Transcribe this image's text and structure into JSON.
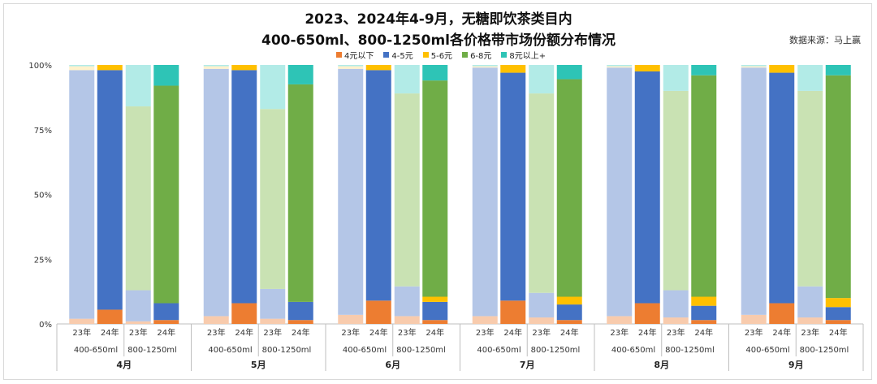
{
  "chart_data": {
    "type": "bar",
    "stacked": true,
    "normalized": true,
    "title": "2023、2024年4-9月，无糖即饮茶类目内",
    "subtitle": "400-650ml、800-1250ml各价格带市场份额分布情况",
    "source": "数据来源：马上赢",
    "legend_position": "top-center",
    "yticks": [
      "0%",
      "25%",
      "50%",
      "75%",
      "100%"
    ],
    "ylim": [
      0,
      100
    ],
    "series": [
      {
        "name": "4元以下",
        "color": "#ED7D31"
      },
      {
        "name": "4-5元",
        "color": "#4472C4"
      },
      {
        "name": "5-6元",
        "color": "#FFC000"
      },
      {
        "name": "6-8元",
        "color": "#70AD47"
      },
      {
        "name": "8元以上+",
        "color": "#2EC4B6"
      }
    ],
    "faded_colors": [
      "#F8CBAD",
      "#B4C6E7",
      "#FFF2CC",
      "#C9E2B3",
      "#B2EBE7"
    ],
    "groups": [
      {
        "month": "4月",
        "bars": [
          {
            "year": "23年",
            "size": "400-650ml",
            "faded": true,
            "values": [
              2,
              96,
              1.5,
              0,
              0.5
            ]
          },
          {
            "year": "24年",
            "size": "400-650ml",
            "faded": false,
            "values": [
              5.5,
              92.5,
              2,
              0,
              0
            ]
          },
          {
            "year": "23年",
            "size": "800-1250ml",
            "faded": true,
            "values": [
              1,
              12,
              0,
              71,
              16
            ]
          },
          {
            "year": "24年",
            "size": "800-1250ml",
            "faded": false,
            "values": [
              1.5,
              6.5,
              0,
              84,
              8
            ]
          }
        ]
      },
      {
        "month": "5月",
        "bars": [
          {
            "year": "23年",
            "size": "400-650ml",
            "faded": true,
            "values": [
              3,
              95.5,
              1,
              0,
              0.5
            ]
          },
          {
            "year": "24年",
            "size": "400-650ml",
            "faded": false,
            "values": [
              8,
              90,
              2,
              0,
              0
            ]
          },
          {
            "year": "23年",
            "size": "800-1250ml",
            "faded": true,
            "values": [
              2,
              11.5,
              0,
              69.5,
              17
            ]
          },
          {
            "year": "24年",
            "size": "800-1250ml",
            "faded": false,
            "values": [
              1.5,
              7,
              0,
              84,
              7.5
            ]
          }
        ]
      },
      {
        "month": "6月",
        "bars": [
          {
            "year": "23年",
            "size": "400-650ml",
            "faded": true,
            "values": [
              3.5,
              95,
              1,
              0,
              0.5
            ]
          },
          {
            "year": "24年",
            "size": "400-650ml",
            "faded": false,
            "values": [
              9,
              89,
              2,
              0,
              0
            ]
          },
          {
            "year": "23年",
            "size": "800-1250ml",
            "faded": true,
            "values": [
              3,
              11.5,
              0,
              74.5,
              11
            ]
          },
          {
            "year": "24年",
            "size": "800-1250ml",
            "faded": false,
            "values": [
              1.5,
              7,
              2,
              83.5,
              6
            ]
          }
        ]
      },
      {
        "month": "7月",
        "bars": [
          {
            "year": "23年",
            "size": "400-650ml",
            "faded": true,
            "values": [
              3,
              96,
              0.5,
              0,
              0.5
            ]
          },
          {
            "year": "24年",
            "size": "400-650ml",
            "faded": false,
            "values": [
              9,
              88,
              3,
              0,
              0
            ]
          },
          {
            "year": "23年",
            "size": "800-1250ml",
            "faded": true,
            "values": [
              2.5,
              9.5,
              0,
              77,
              11
            ]
          },
          {
            "year": "24年",
            "size": "800-1250ml",
            "faded": false,
            "values": [
              1.5,
              6,
              3,
              84,
              5.5
            ]
          }
        ]
      },
      {
        "month": "8月",
        "bars": [
          {
            "year": "23年",
            "size": "400-650ml",
            "faded": true,
            "values": [
              3,
              96,
              0.5,
              0,
              0.5
            ]
          },
          {
            "year": "24年",
            "size": "400-650ml",
            "faded": false,
            "values": [
              8,
              89.5,
              2.5,
              0,
              0
            ]
          },
          {
            "year": "23年",
            "size": "800-1250ml",
            "faded": true,
            "values": [
              2.5,
              10.5,
              0,
              77,
              10
            ]
          },
          {
            "year": "24年",
            "size": "800-1250ml",
            "faded": false,
            "values": [
              1.5,
              5.5,
              3.5,
              85.5,
              4
            ]
          }
        ]
      },
      {
        "month": "9月",
        "bars": [
          {
            "year": "23年",
            "size": "400-650ml",
            "faded": true,
            "values": [
              3.5,
              95.5,
              0.5,
              0,
              0.5
            ]
          },
          {
            "year": "24年",
            "size": "400-650ml",
            "faded": false,
            "values": [
              8,
              89,
              3,
              0,
              0
            ]
          },
          {
            "year": "23年",
            "size": "800-1250ml",
            "faded": true,
            "values": [
              2.5,
              12,
              0,
              75.5,
              10
            ]
          },
          {
            "year": "24年",
            "size": "800-1250ml",
            "faded": false,
            "values": [
              1.5,
              5,
              3.5,
              86,
              4
            ]
          }
        ]
      }
    ]
  }
}
